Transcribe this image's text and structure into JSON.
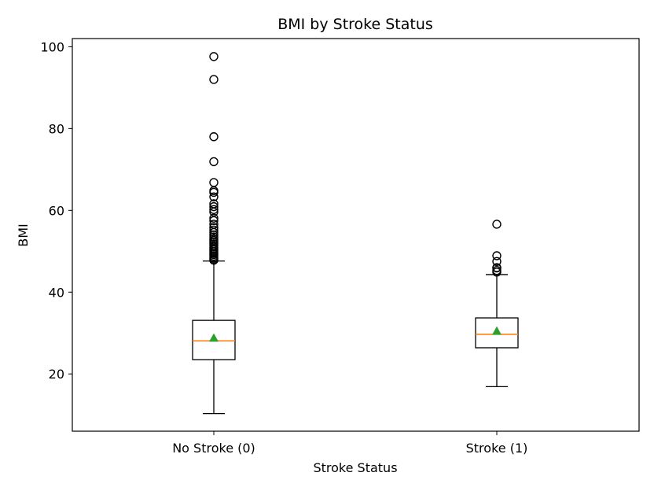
{
  "chart_data": {
    "type": "box",
    "title": "BMI by Stroke Status",
    "xlabel": "Stroke Status",
    "ylabel": "BMI",
    "ylim": [
      6,
      102
    ],
    "yticks": [
      20,
      40,
      60,
      80,
      100
    ],
    "grid": false,
    "legend": "none",
    "categories": [
      "No Stroke (0)",
      "Stroke (1)"
    ],
    "boxes": [
      {
        "category": "No Stroke (0)",
        "whisker_low": 10.3,
        "q1": 23.5,
        "median": 28.1,
        "mean": 28.8,
        "q3": 33.1,
        "whisker_high": 47.6,
        "outliers": [
          47.8,
          48.1,
          48.4,
          48.8,
          49.2,
          49.5,
          49.9,
          50.3,
          50.6,
          51.0,
          51.4,
          51.8,
          52.2,
          52.6,
          53.0,
          53.5,
          54.0,
          54.6,
          55.2,
          55.8,
          56.6,
          57.5,
          58.1,
          59.6,
          60.2,
          60.9,
          61.6,
          63.3,
          64.4,
          64.8,
          66.8,
          71.9,
          78.0,
          92.0,
          97.6
        ]
      },
      {
        "category": "Stroke (1)",
        "whisker_low": 16.9,
        "q1": 26.4,
        "median": 29.7,
        "mean": 30.5,
        "q3": 33.7,
        "whisker_high": 44.3,
        "outliers": [
          44.9,
          45.3,
          45.9,
          46.0,
          47.5,
          48.9,
          56.6
        ]
      }
    ],
    "colors": {
      "box": "#000000",
      "median": "#ff7f0e",
      "mean": "#2ca02c",
      "outlier": "#000000"
    }
  }
}
